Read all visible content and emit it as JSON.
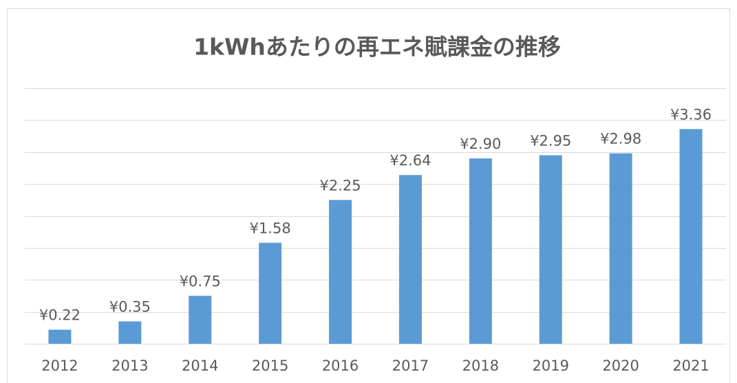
{
  "chart_data": {
    "type": "bar",
    "title": "1kWhあたりの再エネ賦課金の推移",
    "categories": [
      "2012",
      "2013",
      "2014",
      "2015",
      "2016",
      "2017",
      "2018",
      "2019",
      "2020",
      "2021"
    ],
    "values": [
      0.22,
      0.35,
      0.75,
      1.58,
      2.25,
      2.64,
      2.9,
      2.95,
      2.98,
      3.36
    ],
    "value_labels": [
      "¥0.22",
      "¥0.35",
      "¥0.75",
      "¥1.58",
      "¥2.25",
      "¥2.64",
      "¥2.90",
      "¥2.95",
      "¥2.98",
      "¥3.36"
    ],
    "color": "#5b9bd5",
    "ylim": [
      0,
      4
    ],
    "yticks": [
      0,
      0.5,
      1,
      1.5,
      2,
      2.5,
      3,
      3.5,
      4
    ],
    "grid": true
  }
}
